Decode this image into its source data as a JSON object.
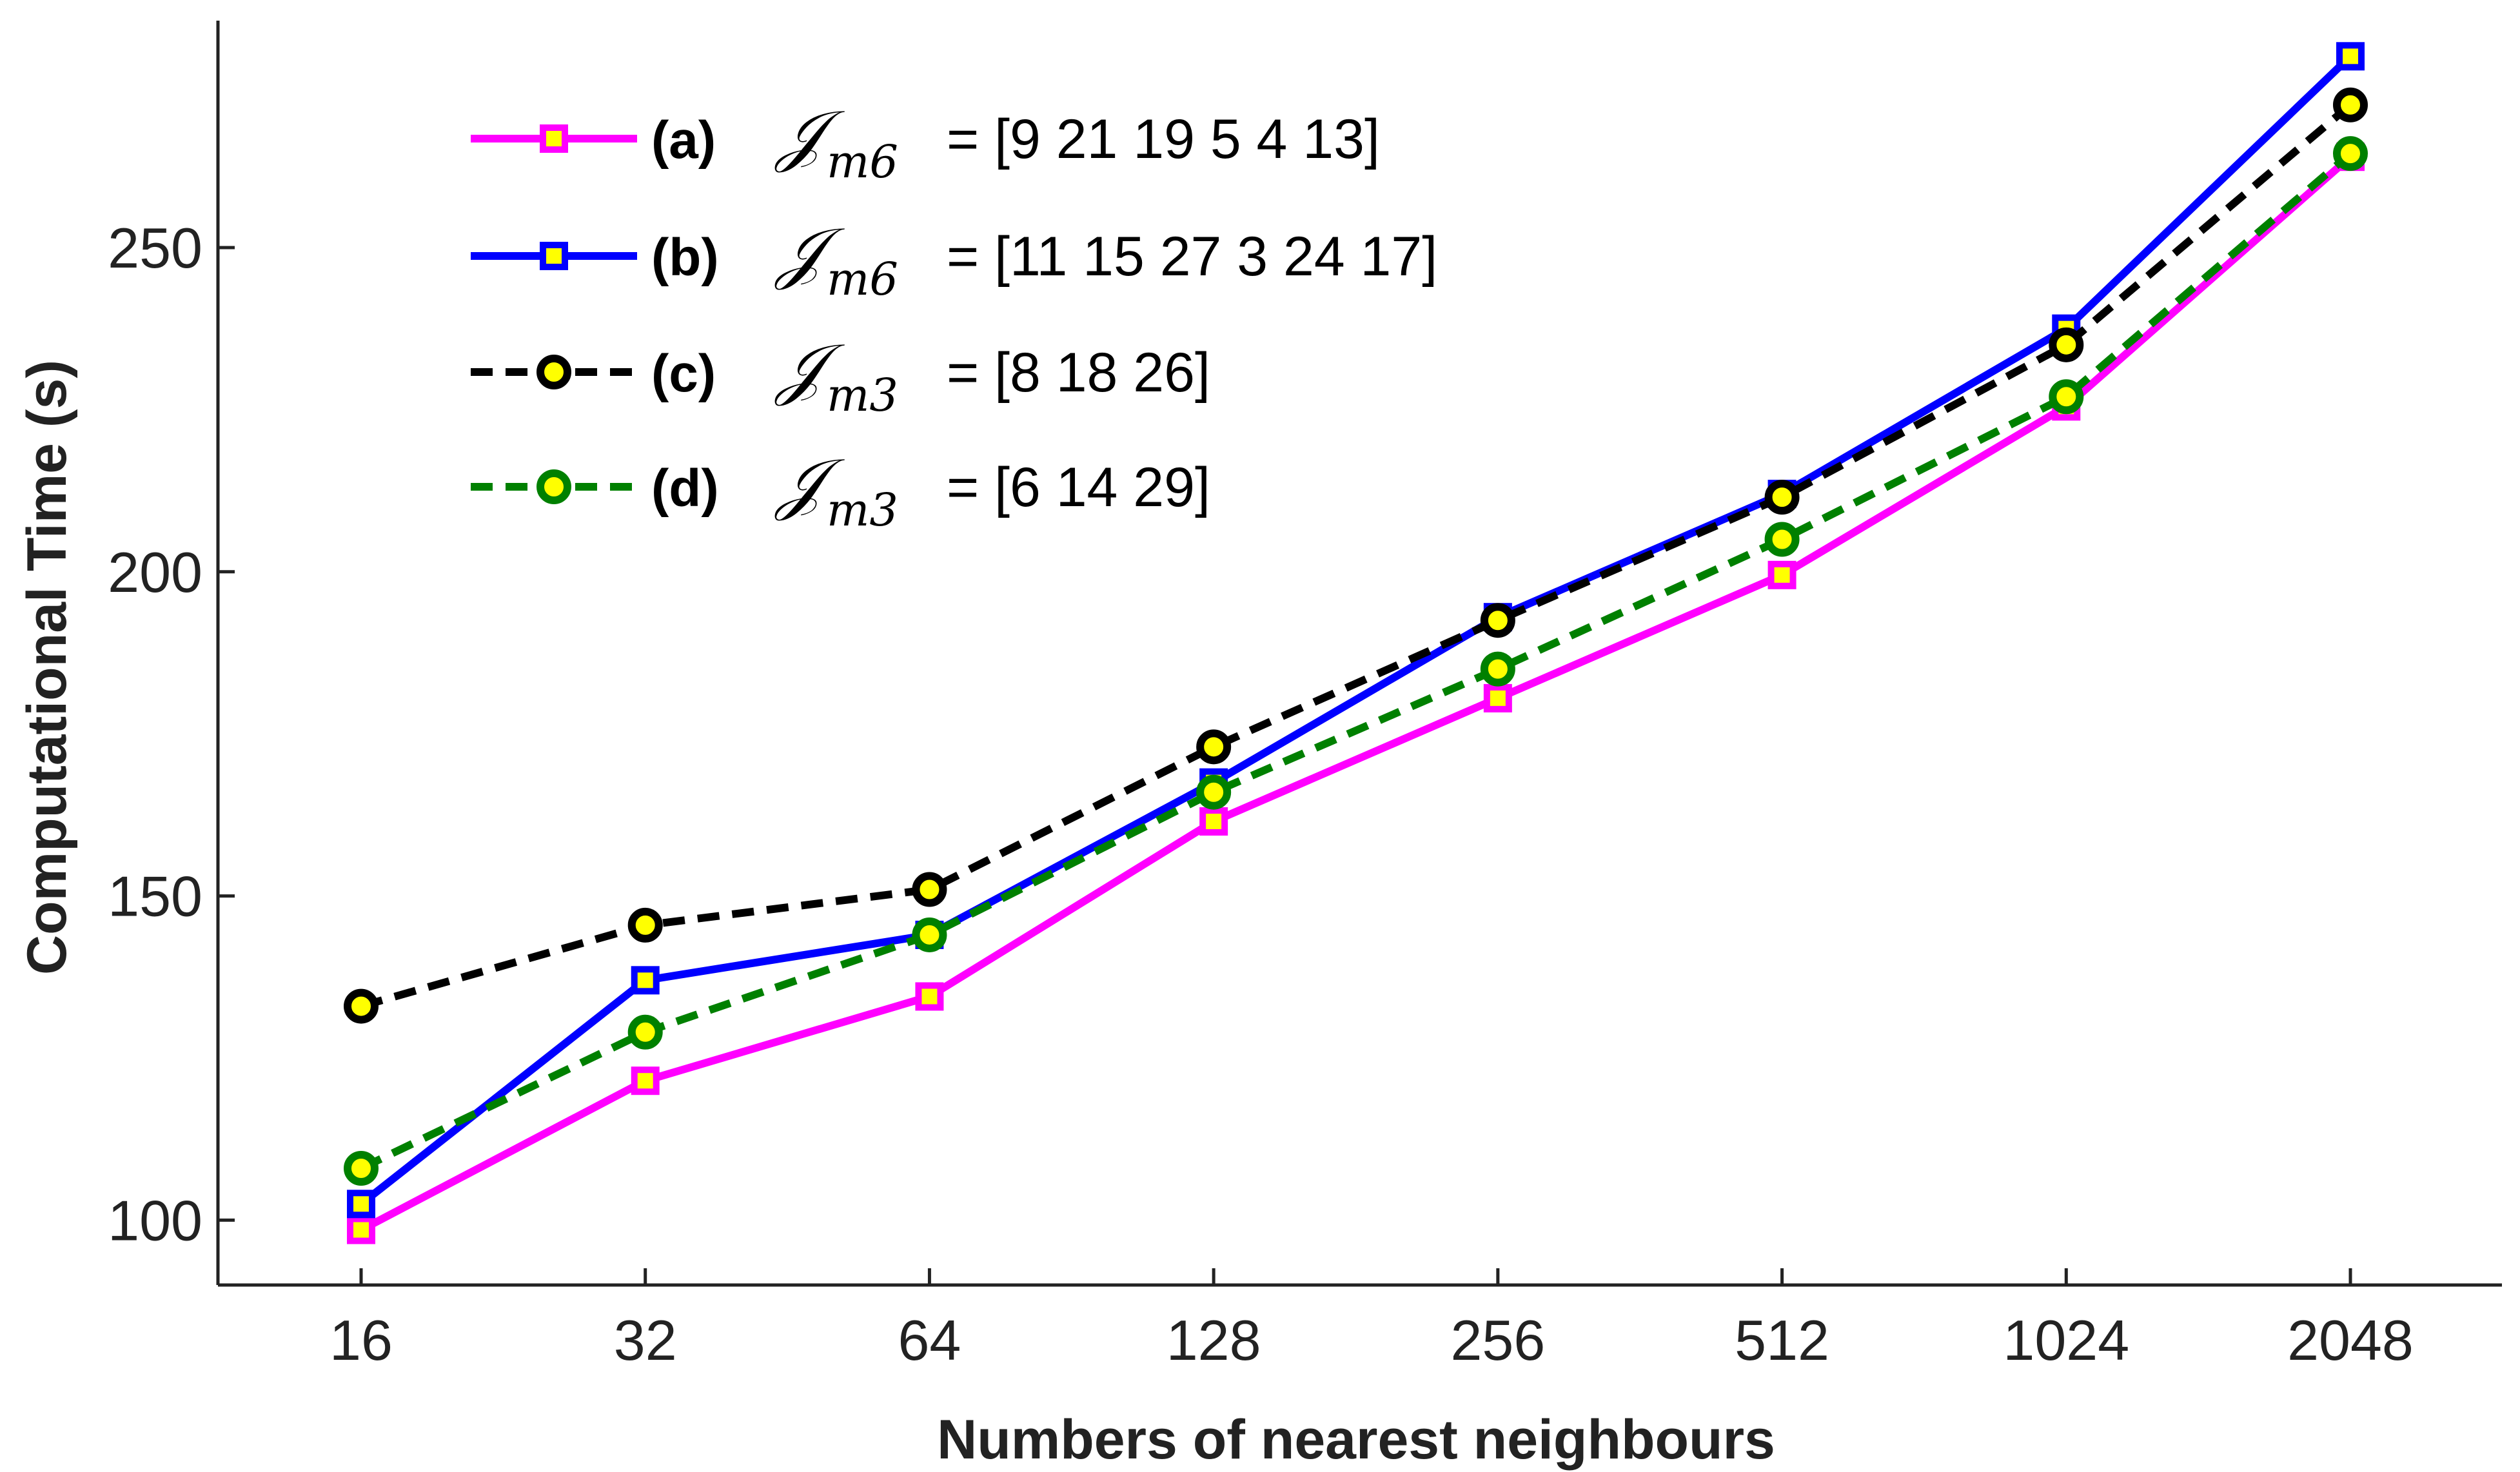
{
  "chart_data": {
    "type": "line",
    "title": "",
    "xlabel": "Numbers of nearest neighbours",
    "ylabel": "Computational Time (s)",
    "categories": [
      "16",
      "32",
      "64",
      "128",
      "256",
      "512",
      "1024",
      "2048"
    ],
    "ylim": [
      90,
      285
    ],
    "yticks": [
      100,
      150,
      200,
      250
    ],
    "legend_position": "top-left",
    "series": [
      {
        "name": "(a)",
        "legend_symbol": "𝒥",
        "legend_subscript": "m6",
        "legend_vector": "= [9   21  19    5   4    13]",
        "values": [
          98.5,
          121.5,
          134.5,
          161.5,
          180.5,
          199.5,
          225.5,
          264
        ],
        "line_color": "#ff00ff",
        "marker": "square",
        "marker_edge": "#ff00ff",
        "marker_face": "#ffff00",
        "dash": "solid"
      },
      {
        "name": "(b)",
        "legend_symbol": "𝒥",
        "legend_subscript": "m6",
        "legend_vector": "= [11  15    27   3   24  17]",
        "values": [
          102.5,
          137,
          144,
          167.5,
          193,
          212,
          237.5,
          279.5
        ],
        "line_color": "#0000ff",
        "marker": "square",
        "marker_edge": "#0000ff",
        "marker_face": "#ffff00",
        "dash": "solid"
      },
      {
        "name": "(c)",
        "legend_symbol": "𝒥",
        "legend_subscript": "m3",
        "legend_vector": "= [8   18   26]",
        "values": [
          133,
          145.5,
          151,
          173,
          192.5,
          211.5,
          235,
          272
        ],
        "line_color": "#000000",
        "marker": "circle",
        "marker_edge": "#000000",
        "marker_face": "#ffff00",
        "dash": "dashed"
      },
      {
        "name": "(d)",
        "legend_symbol": "𝒥",
        "legend_subscript": "m3",
        "legend_vector": "= [6   14   29]",
        "values": [
          108,
          129,
          144,
          166,
          185,
          205,
          227,
          264.5
        ],
        "line_color": "#008000",
        "marker": "circle",
        "marker_edge": "#008000",
        "marker_face": "#ffff00",
        "dash": "dashed"
      }
    ]
  }
}
